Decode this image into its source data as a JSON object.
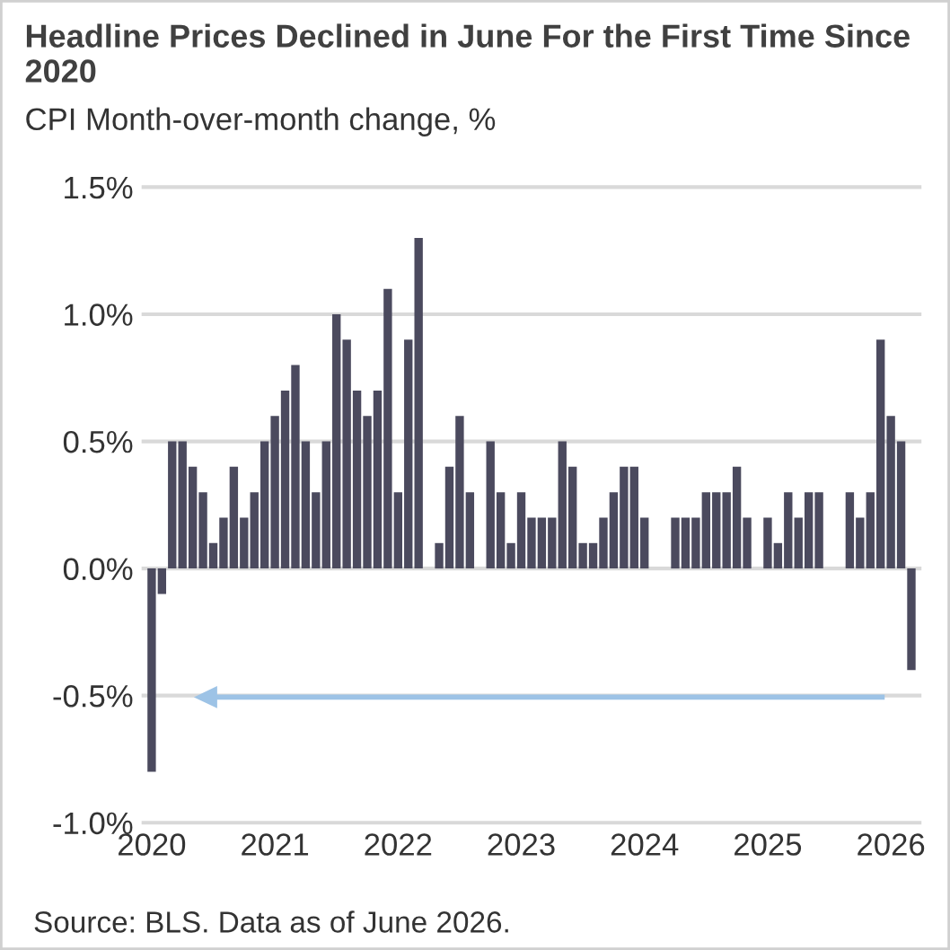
{
  "chart_data": {
    "type": "bar",
    "title": "Headline Prices Declined in June For the First Time Since 2020",
    "subtitle": "CPI Month-over-month change, %",
    "categories": [
      "2020",
      null,
      null,
      null,
      null,
      null,
      null,
      null,
      null,
      null,
      null,
      null,
      "2021",
      null,
      null,
      null,
      null,
      null,
      null,
      null,
      null,
      null,
      null,
      null,
      "2022",
      null,
      null,
      null,
      null,
      null,
      null,
      null,
      null,
      null,
      null,
      null,
      "2023",
      null,
      null,
      null,
      null,
      null,
      null,
      null,
      null,
      null,
      null,
      null,
      "2024",
      null,
      null,
      null,
      null,
      null,
      null,
      null,
      null,
      null,
      null,
      null,
      "2025",
      null,
      null,
      null,
      null,
      null,
      null,
      null,
      null,
      null,
      null,
      null,
      "2026",
      null,
      null
    ],
    "series": [
      {
        "color": "#4b4a5e",
        "values": [
          -0.8,
          -0.1,
          0.5,
          0.5,
          0.4,
          0.3,
          0.1,
          0.2,
          0.4,
          0.2,
          0.3,
          0.5,
          0.6,
          0.7,
          0.8,
          0.5,
          0.3,
          0.5,
          1.0,
          0.9,
          0.7,
          0.6,
          0.7,
          1.1,
          0.3,
          0.9,
          1.3,
          0,
          0.1,
          0.4,
          0.6,
          0.3,
          0,
          0.5,
          0.3,
          0.1,
          0.3,
          0.2,
          0.2,
          0.2,
          0.5,
          0.4,
          0.1,
          0.1,
          0.2,
          0.3,
          0.4,
          0.4,
          0.2,
          0,
          0,
          0.2,
          0.2,
          0.2,
          0.3,
          0.3,
          0.3,
          0.4,
          0.2,
          0,
          0.2,
          0.1,
          0.3,
          0.2,
          0.3,
          0.3,
          0,
          0,
          0.3,
          0.2,
          0.3,
          0.9,
          0.6,
          0.5,
          -0.4
        ]
      }
    ],
    "ylim": [
      -1.0,
      1.5
    ],
    "yticks": [
      {
        "value": -1.0,
        "label": "-1.0%"
      },
      {
        "value": -0.5,
        "label": "-0.5%"
      },
      {
        "value": 0.0,
        "label": "0.0%"
      },
      {
        "value": 0.5,
        "label": "0.5%"
      },
      {
        "value": 1.0,
        "label": "1.0%"
      },
      {
        "value": 1.5,
        "label": "1.5%"
      }
    ],
    "grid": "y",
    "legend": false,
    "annotations": [
      "Source: BLS. Data as of June 2026."
    ]
  }
}
